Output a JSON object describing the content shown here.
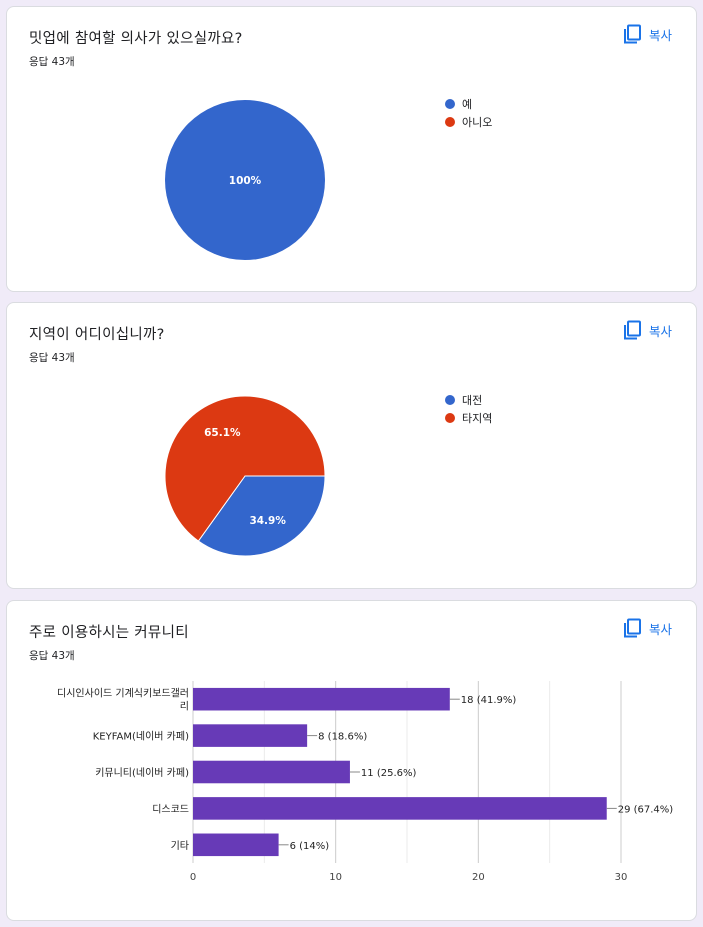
{
  "colors": {
    "blue": "#3366cc",
    "red": "#dc3912",
    "purple": "#673ab7",
    "accent": "#1a73e8"
  },
  "copy_label": "복사",
  "response_count": "응답 43개",
  "chart_data": [
    {
      "type": "pie",
      "title": "밋업에 참여할 의사가 있으실까요?",
      "labels": [
        "예",
        "아니오"
      ],
      "values": [
        100,
        0
      ],
      "value_labels": [
        "100%",
        ""
      ],
      "legend": "right"
    },
    {
      "type": "pie",
      "title": "지역이 어디이십니까?",
      "labels": [
        "대전",
        "타지역"
      ],
      "values": [
        34.9,
        65.1
      ],
      "value_labels": [
        "34.9%",
        "65.1%"
      ],
      "legend": "right"
    },
    {
      "type": "bar",
      "orientation": "horizontal",
      "title": "주로 이용하시는 커뮤니티",
      "categories": [
        "디시인사이드 기계식키보드갤러리",
        "KEYFAM(네이버 카페)",
        "키뮤니티(네이버 카페)",
        "디스코드",
        "기타"
      ],
      "category_lines": [
        [
          "디시인사이드 기계식키보드갤러",
          "리"
        ],
        [
          "KEYFAM(네이버 카페)"
        ],
        [
          "키뮤니티(네이버 카페)"
        ],
        [
          "디스코드"
        ],
        [
          "기타"
        ]
      ],
      "values": [
        18,
        8,
        11,
        29,
        6
      ],
      "value_labels": [
        "18 (41.9%)",
        "8 (18.6%)",
        "11 (25.6%)",
        "29 (67.4%)",
        "6 (14%)"
      ],
      "xlim": [
        0,
        30
      ],
      "xticks": [
        0,
        10,
        20,
        30
      ],
      "grid": true
    }
  ]
}
